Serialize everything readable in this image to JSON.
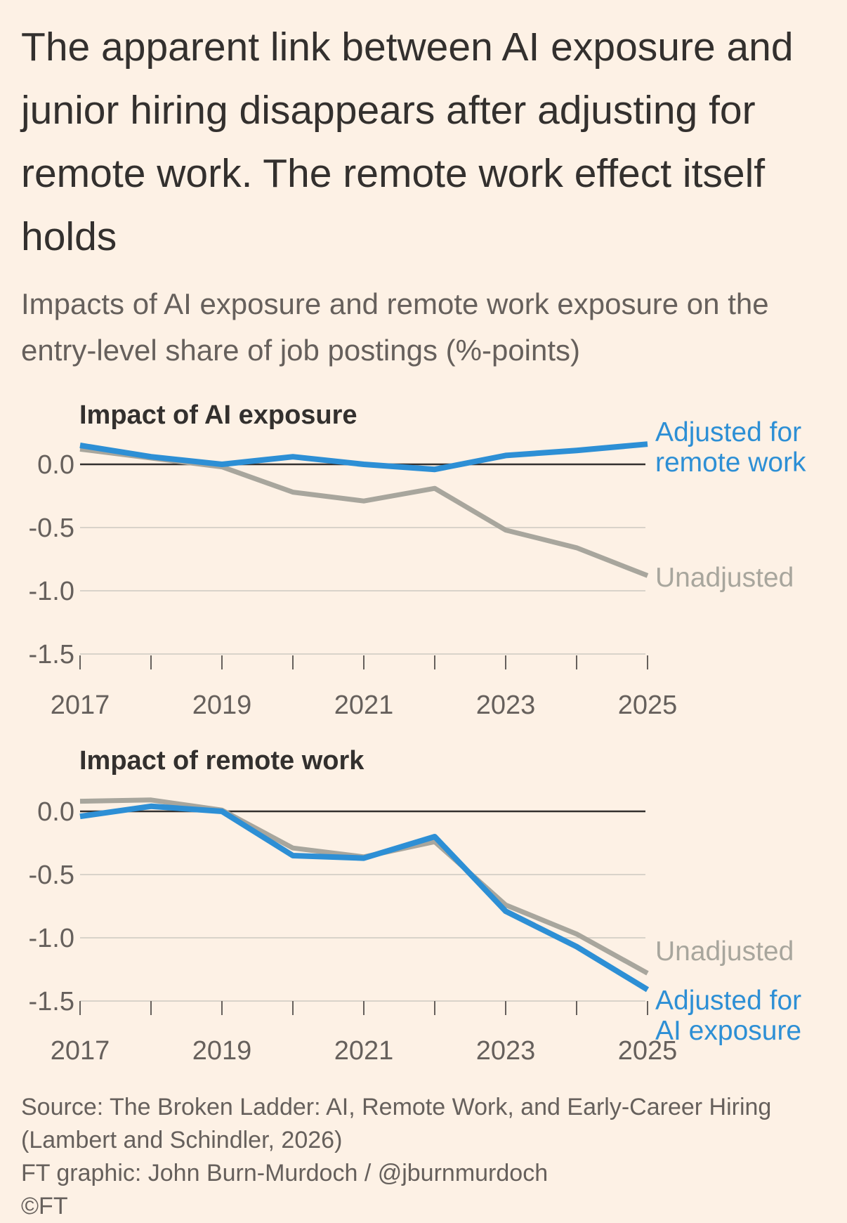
{
  "title": "The apparent link between AI exposure and junior hiring disappears after adjusting for remote work. The remote work effect itself holds",
  "subtitle": "Impacts of AI exposure and remote work exposure on the entry-level share of job postings (%-points)",
  "footer": {
    "source": "Source: The Broken Ladder: AI, Remote Work, and Early-Career Hiring (Lambert and Schindler, 2026)",
    "credit": "FT graphic: John Burn-Murdoch / @jburnmurdoch",
    "copyright": "©FT"
  },
  "colors": {
    "background": "#fdf1e5",
    "adjusted": "#2d8fd5",
    "unadjusted": "#a8a69d",
    "gridline": "#d9d3ca",
    "zeroline": "#33302e",
    "text": "#33302e",
    "muted_text": "#66605c"
  },
  "chart_data": [
    {
      "type": "line",
      "title": "Impact of AI exposure",
      "x": [
        2017,
        2018,
        2019,
        2020,
        2021,
        2022,
        2023,
        2024,
        2025
      ],
      "x_tick_labels": [
        "2017",
        "2019",
        "2021",
        "2023",
        "2025"
      ],
      "y_ticks": [
        0.0,
        -0.5,
        -1.0,
        -1.5
      ],
      "y_tick_labels": [
        "0.0",
        "-0.5",
        "-1.0",
        "-1.5"
      ],
      "ylim": [
        -1.5,
        0.15
      ],
      "grid": true,
      "series": [
        {
          "name": "Unadjusted",
          "color": "#a8a69d",
          "values": [
            0.12,
            0.05,
            -0.02,
            -0.22,
            -0.29,
            -0.19,
            -0.52,
            -0.66,
            -0.88
          ]
        },
        {
          "name": "Adjusted for remote work",
          "color": "#2d8fd5",
          "values": [
            0.15,
            0.06,
            0.0,
            0.06,
            0.0,
            -0.04,
            0.07,
            0.11,
            0.16
          ]
        }
      ],
      "series_label_lines": [
        [
          "Unadjusted"
        ],
        [
          "Adjusted for",
          "remote work"
        ]
      ]
    },
    {
      "type": "line",
      "title": "Impact of remote work",
      "x": [
        2017,
        2018,
        2019,
        2020,
        2021,
        2022,
        2023,
        2024,
        2025
      ],
      "x_tick_labels": [
        "2017",
        "2019",
        "2021",
        "2023",
        "2025"
      ],
      "y_ticks": [
        0.0,
        -0.5,
        -1.0,
        -1.5
      ],
      "y_tick_labels": [
        "0.0",
        "-0.5",
        "-1.0",
        "-1.5"
      ],
      "ylim": [
        -1.5,
        0.1
      ],
      "grid": true,
      "series": [
        {
          "name": "Unadjusted",
          "color": "#a8a69d",
          "values": [
            0.08,
            0.09,
            0.01,
            -0.29,
            -0.36,
            -0.24,
            -0.74,
            -0.97,
            -1.28
          ]
        },
        {
          "name": "Adjusted for AI exposure",
          "color": "#2d8fd5",
          "values": [
            -0.04,
            0.04,
            0.0,
            -0.35,
            -0.37,
            -0.2,
            -0.79,
            -1.07,
            -1.41
          ]
        }
      ],
      "series_label_lines": [
        [
          "Unadjusted"
        ],
        [
          "Adjusted for",
          "AI exposure"
        ]
      ]
    }
  ]
}
